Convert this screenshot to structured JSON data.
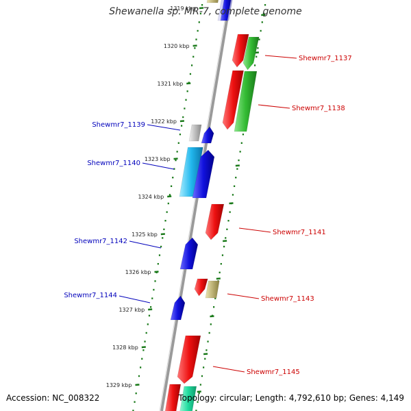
{
  "title": "Shewanella sp. MR-7, complete genome",
  "footer": {
    "accession": "Accession: NC_008322",
    "topology": "Topology: circular; Length: 4,792,610 bp; Genes: 4,149"
  },
  "colors": {
    "backbone": "#8c8c8c",
    "tick_track": "#1a7a1a",
    "red": "#ee1111",
    "blue": "#1111dd",
    "green": "#33bb33",
    "cyan": "#22b8ee",
    "gray": "#bdbdbd",
    "khaki": "#bdb276",
    "periwinkle": "#b9b9f0",
    "teal": "#22dda0",
    "label_forward": "#cc0000",
    "label_reverse": "#0000bb"
  },
  "ticks": [
    {
      "label": "1319 kbp"
    },
    {
      "label": "1320 kbp"
    },
    {
      "label": "1321 kbp"
    },
    {
      "label": "1322 kbp"
    },
    {
      "label": "1323 kbp"
    },
    {
      "label": "1324 kbp"
    },
    {
      "label": "1325 kbp"
    },
    {
      "label": "1326 kbp"
    },
    {
      "label": "1327 kbp"
    },
    {
      "label": "1328 kbp"
    },
    {
      "label": "1329 kbp"
    }
  ],
  "genes": [
    {
      "name": "Shewmr7_1137",
      "strand": "forward",
      "color": "red"
    },
    {
      "name": "Shewmr7_1138",
      "strand": "forward",
      "color": "green"
    },
    {
      "name": "Shewmr7_1139",
      "strand": "reverse",
      "color": "blue"
    },
    {
      "name": "Shewmr7_1140",
      "strand": "reverse",
      "color": "cyan"
    },
    {
      "name": "Shewmr7_1141",
      "strand": "forward",
      "color": "red"
    },
    {
      "name": "Shewmr7_1142",
      "strand": "reverse",
      "color": "blue"
    },
    {
      "name": "Shewmr7_1143",
      "strand": "forward",
      "color": "red"
    },
    {
      "name": "Shewmr7_1144",
      "strand": "reverse",
      "color": "blue"
    },
    {
      "name": "Shewmr7_1145",
      "strand": "forward",
      "color": "red"
    }
  ]
}
